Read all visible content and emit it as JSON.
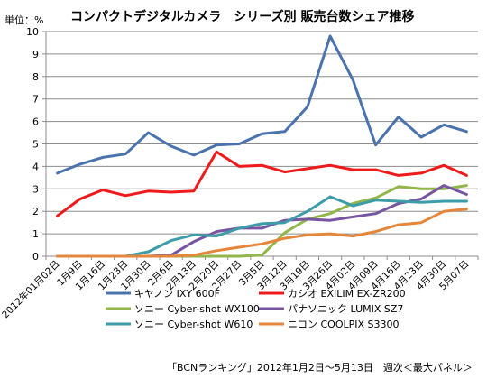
{
  "chart_data": {
    "type": "line",
    "title": "コンパクトデジタルカメラ　シリーズ別 販売台数シェア推移",
    "ylabel": "単位：%",
    "xlabel": "",
    "source": "「BCNランキング」2012年1月2日～5月13日　週次＜最大パネル＞",
    "ylim": [
      0,
      10
    ],
    "yticks": [
      0,
      1,
      2,
      3,
      4,
      5,
      6,
      7,
      8,
      9,
      10
    ],
    "grid": true,
    "legend_position": "bottom",
    "categories": [
      "2012年01月02日",
      "1月9日",
      "1月16日",
      "1月23日",
      "1月30日",
      "2月6日",
      "2月13日",
      "2月20日",
      "2月27日",
      "3月5日",
      "3月12日",
      "3月19日",
      "3月26日",
      "4月02日",
      "4月09日",
      "4月16日",
      "4月23日",
      "4月30日",
      "5月07日"
    ],
    "series": [
      {
        "name": "キヤノン IXY 600F",
        "color": "#4a73ae",
        "values": [
          3.7,
          4.1,
          4.4,
          4.55,
          5.5,
          4.9,
          4.5,
          4.95,
          5.0,
          5.45,
          5.55,
          6.65,
          9.8,
          7.85,
          4.95,
          6.2,
          5.3,
          5.85,
          5.55
        ]
      },
      {
        "name": "カシオ EXILIM EX-ZR200",
        "color": "#ef1a1a",
        "values": [
          1.8,
          2.55,
          2.95,
          2.7,
          2.9,
          2.85,
          2.9,
          4.65,
          4.0,
          4.05,
          3.75,
          3.9,
          4.05,
          3.85,
          3.85,
          3.6,
          3.7,
          4.05,
          3.6
        ]
      },
      {
        "name": "ソニー Cyber-shot WX100",
        "color": "#91b64a",
        "values": [
          0,
          0,
          0,
          0,
          0,
          0,
          0,
          0,
          0,
          0.05,
          1.05,
          1.65,
          1.9,
          2.35,
          2.6,
          3.1,
          3.0,
          3.0,
          3.15
        ]
      },
      {
        "name": "パナソニック LUMIX SZ7",
        "color": "#7755a0",
        "values": [
          0,
          0,
          0,
          0,
          0,
          0.05,
          0.65,
          1.1,
          1.25,
          1.25,
          1.6,
          1.65,
          1.6,
          1.75,
          1.9,
          2.35,
          2.55,
          3.15,
          2.75
        ]
      },
      {
        "name": "ソニー Cyber-shot W610",
        "color": "#3c9ca8",
        "values": [
          0,
          0,
          0,
          0,
          0.2,
          0.7,
          0.95,
          0.9,
          1.25,
          1.45,
          1.5,
          2.0,
          2.65,
          2.25,
          2.5,
          2.45,
          2.4,
          2.45,
          2.45
        ]
      },
      {
        "name": "ニコン COOLPIX S3300",
        "color": "#e5863a",
        "values": [
          0,
          0,
          0,
          0,
          0,
          0,
          0.05,
          0.25,
          0.4,
          0.55,
          0.8,
          0.95,
          1.0,
          0.9,
          1.1,
          1.4,
          1.5,
          2.0,
          2.1
        ]
      }
    ]
  }
}
